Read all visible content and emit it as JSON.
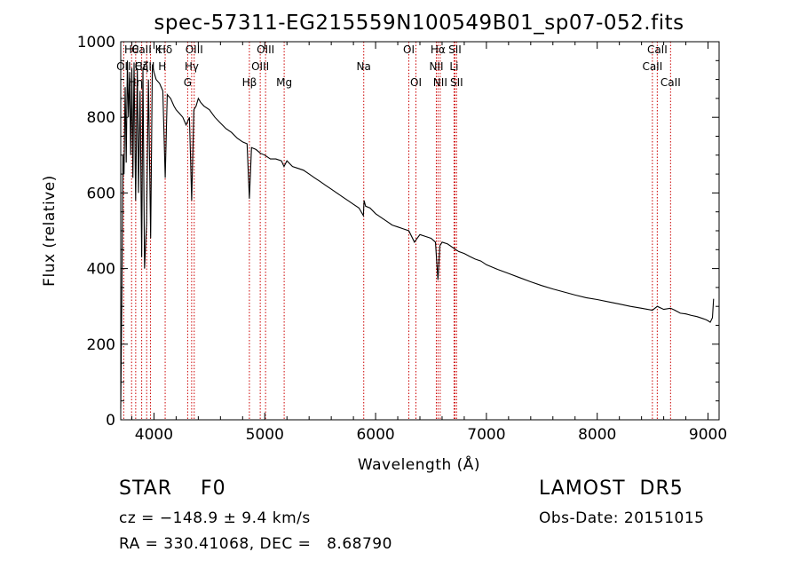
{
  "chart_data": {
    "type": "line",
    "title": "spec-57311-EG215559N100549B01_sp07-052.fits",
    "xlabel": "Wavelength (Å)",
    "ylabel": "Flux (relative)",
    "xlim": [
      3700,
      9100
    ],
    "ylim": [
      0,
      1000
    ],
    "xticks": [
      4000,
      5000,
      6000,
      7000,
      8000,
      9000
    ],
    "yticks": [
      0,
      200,
      400,
      600,
      800,
      1000
    ],
    "grid": false,
    "series": [
      {
        "x": [
          3700,
          3710,
          3720,
          3730,
          3740,
          3750,
          3760,
          3770,
          3780,
          3790,
          3800,
          3810,
          3820,
          3835,
          3850,
          3860,
          3875,
          3889,
          3900,
          3915,
          3933,
          3950,
          3970,
          3985,
          4000,
          4020,
          4050,
          4080,
          4101,
          4120,
          4150,
          4180,
          4200,
          4230,
          4260,
          4290,
          4320,
          4340,
          4360,
          4380,
          4400,
          4420,
          4450,
          4500,
          4550,
          4600,
          4650,
          4700,
          4750,
          4800,
          4840,
          4861,
          4880,
          4920,
          4960,
          5000,
          5050,
          5100,
          5150,
          5173,
          5200,
          5250,
          5300,
          5350,
          5400,
          5450,
          5500,
          5550,
          5600,
          5650,
          5700,
          5750,
          5800,
          5850,
          5890,
          5896,
          5910,
          5950,
          6000,
          6050,
          6100,
          6150,
          6200,
          6250,
          6300,
          6350,
          6400,
          6450,
          6500,
          6540,
          6563,
          6580,
          6600,
          6650,
          6700,
          6750,
          6800,
          6850,
          6900,
          6950,
          7000,
          7100,
          7200,
          7300,
          7400,
          7500,
          7600,
          7700,
          7800,
          7900,
          8000,
          8100,
          8200,
          8300,
          8400,
          8498,
          8542,
          8600,
          8662,
          8700,
          8750,
          8800,
          8850,
          8900,
          8950,
          8980,
          9000,
          9020,
          9040,
          9050
        ],
        "y": [
          30,
          320,
          700,
          650,
          880,
          680,
          950,
          800,
          920,
          700,
          930,
          640,
          945,
          580,
          930,
          600,
          870,
          430,
          930,
          400,
          520,
          900,
          480,
          940,
          920,
          900,
          890,
          870,
          640,
          860,
          850,
          830,
          820,
          810,
          800,
          780,
          800,
          580,
          820,
          830,
          850,
          840,
          830,
          820,
          800,
          785,
          770,
          760,
          745,
          735,
          730,
          585,
          720,
          715,
          705,
          700,
          690,
          690,
          685,
          670,
          685,
          670,
          665,
          660,
          650,
          640,
          630,
          620,
          610,
          600,
          590,
          580,
          570,
          560,
          540,
          580,
          565,
          560,
          545,
          535,
          525,
          515,
          510,
          505,
          500,
          470,
          490,
          485,
          480,
          470,
          370,
          460,
          470,
          465,
          455,
          445,
          440,
          432,
          425,
          420,
          410,
          398,
          387,
          376,
          365,
          355,
          346,
          338,
          330,
          323,
          318,
          312,
          306,
          300,
          295,
          290,
          300,
          292,
          295,
          290,
          282,
          280,
          276,
          273,
          268,
          265,
          262,
          258,
          270,
          320
        ]
      }
    ],
    "line_markers": [
      {
        "label": "OII",
        "x": 3727,
        "row": 1
      },
      {
        "label": "Hθ",
        "x": 3798,
        "row": 0
      },
      {
        "label": "Hη",
        "x": 3835,
        "row": 2
      },
      {
        "label": "Hζ",
        "x": 3889,
        "row": 1
      },
      {
        "label": "CaII K",
        "x": 3934,
        "row": 0
      },
      {
        "label": "CaII H",
        "x": 3968,
        "row": 1
      },
      {
        "label": "Hδ",
        "x": 4101,
        "row": 0
      },
      {
        "label": "G",
        "x": 4304,
        "row": 2
      },
      {
        "label": "Hγ",
        "x": 4340,
        "row": 1
      },
      {
        "label": "OIII",
        "x": 4363,
        "row": 0
      },
      {
        "label": "Hβ",
        "x": 4861,
        "row": 2
      },
      {
        "label": "OIII",
        "x": 4959,
        "row": 1
      },
      {
        "label": "OIII",
        "x": 5007,
        "row": 0
      },
      {
        "label": "Mg",
        "x": 5175,
        "row": 2
      },
      {
        "label": "Na",
        "x": 5893,
        "row": 1
      },
      {
        "label": "OI",
        "x": 6300,
        "row": 0
      },
      {
        "label": "OI",
        "x": 6364,
        "row": 2
      },
      {
        "label": "NII",
        "x": 6548,
        "row": 1
      },
      {
        "label": "Hα",
        "x": 6563,
        "row": 0
      },
      {
        "label": "NII",
        "x": 6583,
        "row": 2
      },
      {
        "label": "Li",
        "x": 6708,
        "row": 1
      },
      {
        "label": "SII",
        "x": 6716,
        "row": 0
      },
      {
        "label": "SII",
        "x": 6731,
        "row": 2
      },
      {
        "label": "CaII",
        "x": 8498,
        "row": 1
      },
      {
        "label": "CaII",
        "x": 8542,
        "row": 0
      },
      {
        "label": "CaII",
        "x": 8662,
        "row": 2
      }
    ],
    "colors": {
      "spectrum": "#000000",
      "markers": "#cc0000",
      "axes": "#000000"
    }
  },
  "footer": {
    "object_class": "STAR    F0",
    "survey": "LAMOST  DR5",
    "velocity": "cz = −148.9 ± 9.4 km/s",
    "obs_date": "Obs-Date: 20151015",
    "coords": "RA = 330.41068, DEC =   8.68790"
  }
}
